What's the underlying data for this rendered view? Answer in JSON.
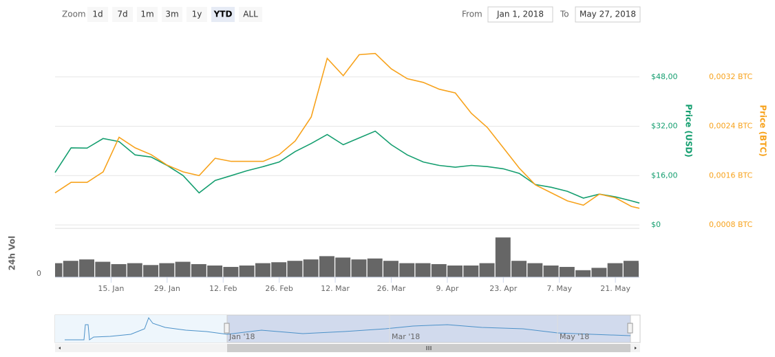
{
  "chart_data": {
    "type": "line",
    "range_selector": {
      "label": "Zoom",
      "buttons": [
        "1d",
        "7d",
        "1m",
        "3m",
        "1y",
        "YTD",
        "ALL"
      ],
      "selected": 5,
      "from_label": "From",
      "from": "Jan 1, 2018",
      "to_label": "To",
      "to": "May 27, 2018"
    },
    "x": [
      "2018-01-01",
      "2018-01-05",
      "2018-01-09",
      "2018-01-13",
      "2018-01-17",
      "2018-01-21",
      "2018-01-25",
      "2018-01-29",
      "2018-02-02",
      "2018-02-06",
      "2018-02-10",
      "2018-02-14",
      "2018-02-18",
      "2018-02-22",
      "2018-02-26",
      "2018-03-02",
      "2018-03-06",
      "2018-03-10",
      "2018-03-14",
      "2018-03-18",
      "2018-03-22",
      "2018-03-26",
      "2018-03-30",
      "2018-04-03",
      "2018-04-07",
      "2018-04-11",
      "2018-04-15",
      "2018-04-19",
      "2018-04-23",
      "2018-04-27",
      "2018-05-01",
      "2018-05-05",
      "2018-05-09",
      "2018-05-13",
      "2018-05-17",
      "2018-05-21",
      "2018-05-25",
      "2018-05-27"
    ],
    "xlim": [
      "2018-01-01",
      "2018-05-27"
    ],
    "xticks": [
      {
        "value": "2018-01-15",
        "label": "15. Jan"
      },
      {
        "value": "2018-01-29",
        "label": "29. Jan"
      },
      {
        "value": "2018-02-12",
        "label": "12. Feb"
      },
      {
        "value": "2018-02-26",
        "label": "26. Feb"
      },
      {
        "value": "2018-03-12",
        "label": "12. Mar"
      },
      {
        "value": "2018-03-26",
        "label": "26. Mar"
      },
      {
        "value": "2018-04-09",
        "label": "9. Apr"
      },
      {
        "value": "2018-04-23",
        "label": "23. Apr"
      },
      {
        "value": "2018-05-07",
        "label": "7. May"
      },
      {
        "value": "2018-05-21",
        "label": "21. May"
      }
    ],
    "ylabel": "Price (USD)",
    "ylim": [
      0,
      64
    ],
    "yticks": [
      {
        "value": 0,
        "label": "$0"
      },
      {
        "value": 16,
        "label": "$16,00"
      },
      {
        "value": 32,
        "label": "$32,00"
      },
      {
        "value": 48,
        "label": "$48,00"
      }
    ],
    "y2label": "Price (BTC)",
    "y2lim": [
      0.0008,
      0.004
    ],
    "y2ticks": [
      {
        "value": 0.0008,
        "label": "0,0008 BTC"
      },
      {
        "value": 0.0016,
        "label": "0,0016 BTC"
      },
      {
        "value": 0.0024,
        "label": "0,0024 BTC"
      },
      {
        "value": 0.0032,
        "label": "0,0032 BTC"
      }
    ],
    "grid": true,
    "series": [
      {
        "name": "Price (USD)",
        "color": "#149e6f",
        "axis": "y",
        "values": [
          17,
          25,
          24.9,
          28,
          27,
          22.7,
          22,
          19.3,
          16,
          10.4,
          14.4,
          16,
          17.6,
          18.9,
          20.4,
          23.8,
          26.4,
          29.3,
          26,
          28.2,
          30.4,
          26,
          22.7,
          20.4,
          19.3,
          18.7,
          19.3,
          18.9,
          18.2,
          16.7,
          13.1,
          12.2,
          10.9,
          8.7,
          10,
          9.1,
          7.8,
          7.1
        ]
      },
      {
        "name": "Price (BTC)",
        "color": "#f7a21b",
        "axis": "y2",
        "values": [
          0.00132,
          0.00149,
          0.00149,
          0.00166,
          0.00222,
          0.00205,
          0.00194,
          0.00177,
          0.00166,
          0.0016,
          0.00188,
          0.00183,
          0.00183,
          0.00183,
          0.00194,
          0.00216,
          0.00255,
          0.0035,
          0.00322,
          0.00356,
          0.00358,
          0.00333,
          0.00317,
          0.00311,
          0.003,
          0.00294,
          0.00261,
          0.00238,
          0.00205,
          0.00172,
          0.00145,
          0.00132,
          0.00119,
          0.00112,
          0.0013,
          0.00124,
          0.0011,
          0.00107
        ]
      }
    ],
    "volume": {
      "name": "24h Vol",
      "color": "#666666",
      "ylim": [
        0,
        100
      ],
      "yticks": [
        0
      ],
      "values": [
        30,
        35,
        38,
        33,
        28,
        30,
        26,
        30,
        33,
        28,
        25,
        22,
        25,
        30,
        32,
        35,
        38,
        45,
        42,
        38,
        40,
        35,
        30,
        30,
        28,
        25,
        25,
        30,
        85,
        35,
        30,
        25,
        22,
        15,
        20,
        30,
        35,
        30
      ]
    },
    "navigator": {
      "labels": [
        "Jan '18",
        "Mar '18",
        "May '18"
      ]
    }
  }
}
